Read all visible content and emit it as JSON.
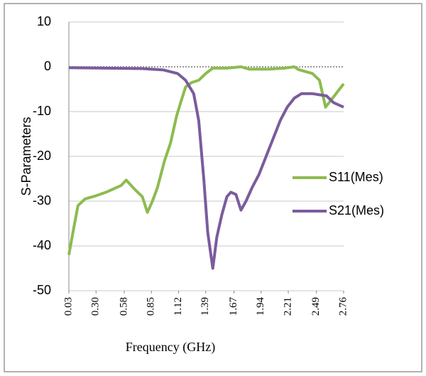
{
  "chart_data": {
    "type": "line",
    "xlabel": "Frequency (GHz)",
    "ylabel": "S-Parameters",
    "xlim": [
      0.03,
      2.76
    ],
    "xticks": [
      0.03,
      {
        "value": 0.3,
        "label": "0.30"
      },
      0.58,
      0.85,
      1.12,
      1.39,
      1.67,
      1.94,
      2.21,
      2.49,
      2.76
    ],
    "ylim": [
      -50,
      10
    ],
    "yticks": [
      10,
      0,
      -10,
      -20,
      -30,
      -40,
      -50
    ],
    "grid": true,
    "legend": "right",
    "series": [
      {
        "name": "S11(Mes)",
        "color": "#8dbb4f",
        "x": [
          0.03,
          0.07,
          0.12,
          0.19,
          0.3,
          0.4,
          0.5,
          0.55,
          0.6,
          0.69,
          0.76,
          0.81,
          0.86,
          0.91,
          0.98,
          1.04,
          1.1,
          1.14,
          1.19,
          1.25,
          1.32,
          1.39,
          1.46,
          1.6,
          1.74,
          1.82,
          2.03,
          2.17,
          2.27,
          2.31,
          2.45,
          2.52,
          2.58,
          2.65,
          2.76
        ],
        "values": [
          -42,
          -37,
          -31,
          -29.5,
          -28.8,
          -28,
          -27,
          -26.5,
          -25.3,
          -27.5,
          -29,
          -32.5,
          -30,
          -27,
          -21,
          -17,
          -11,
          -8,
          -4.5,
          -3.5,
          -3,
          -1.5,
          -0.3,
          -0.3,
          0,
          -0.5,
          -0.5,
          -0.3,
          0,
          -0.6,
          -1.5,
          -3,
          -9,
          -7,
          -3.8
        ]
      },
      {
        "name": "S21(Mes)",
        "color": "#7a5c9c",
        "x": [
          0.03,
          0.4,
          0.76,
          0.97,
          1.11,
          1.19,
          1.27,
          1.32,
          1.37,
          1.41,
          1.46,
          1.5,
          1.55,
          1.6,
          1.64,
          1.69,
          1.74,
          1.79,
          1.85,
          1.92,
          1.99,
          2.06,
          2.13,
          2.2,
          2.27,
          2.34,
          2.45,
          2.59,
          2.66,
          2.76
        ],
        "values": [
          -0.2,
          -0.3,
          -0.4,
          -0.7,
          -1.5,
          -3,
          -6,
          -12,
          -25,
          -37,
          -45,
          -38,
          -33,
          -29,
          -28,
          -28.5,
          -32,
          -30,
          -27,
          -24,
          -20,
          -16,
          -12,
          -9,
          -7,
          -6,
          -6,
          -6.5,
          -8,
          -9
        ]
      }
    ]
  }
}
